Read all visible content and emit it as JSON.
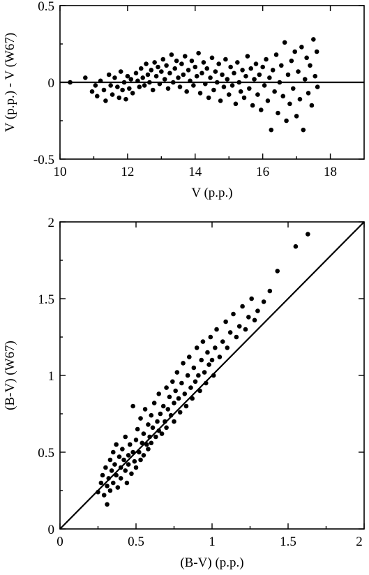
{
  "chart_data": [
    {
      "type": "scatter",
      "title": "",
      "xlabel": "V (p.p.)",
      "ylabel": "V (p.p.) - V (W67)",
      "xlim": [
        10,
        19
      ],
      "ylim": [
        -0.5,
        0.5
      ],
      "xticks": [
        "10",
        "12",
        "14",
        "16",
        "18"
      ],
      "yticks": [
        "-0.5",
        "0",
        "0.5"
      ],
      "reference_line": {
        "type": "horizontal",
        "y": 0
      },
      "grid": false,
      "legend": "none",
      "point_color": "#000000",
      "points_note": "estimated from plot",
      "points": [
        [
          10.3,
          0.0
        ],
        [
          10.75,
          0.03
        ],
        [
          10.95,
          -0.06
        ],
        [
          11.05,
          -0.02
        ],
        [
          11.1,
          -0.09
        ],
        [
          11.2,
          0.01
        ],
        [
          11.3,
          -0.05
        ],
        [
          11.35,
          -0.12
        ],
        [
          11.45,
          0.05
        ],
        [
          11.5,
          -0.02
        ],
        [
          11.55,
          -0.08
        ],
        [
          11.62,
          0.03
        ],
        [
          11.7,
          -0.03
        ],
        [
          11.75,
          -0.1
        ],
        [
          11.8,
          0.07
        ],
        [
          11.85,
          -0.05
        ],
        [
          11.9,
          0.0
        ],
        [
          11.95,
          -0.11
        ],
        [
          12.0,
          0.04
        ],
        [
          12.05,
          -0.04
        ],
        [
          12.1,
          0.02
        ],
        [
          12.15,
          -0.07
        ],
        [
          12.25,
          0.06
        ],
        [
          12.3,
          0.01
        ],
        [
          12.35,
          -0.03
        ],
        [
          12.4,
          0.09
        ],
        [
          12.45,
          0.03
        ],
        [
          12.5,
          -0.02
        ],
        [
          12.55,
          0.12
        ],
        [
          12.6,
          0.05
        ],
        [
          12.65,
          0.0
        ],
        [
          12.7,
          0.08
        ],
        [
          12.75,
          -0.05
        ],
        [
          12.8,
          0.13
        ],
        [
          12.85,
          0.04
        ],
        [
          12.9,
          0.1
        ],
        [
          12.95,
          -0.01
        ],
        [
          13.0,
          0.07
        ],
        [
          13.05,
          0.15
        ],
        [
          13.1,
          0.02
        ],
        [
          13.15,
          0.11
        ],
        [
          13.2,
          -0.04
        ],
        [
          13.25,
          0.06
        ],
        [
          13.3,
          0.18
        ],
        [
          13.35,
          0.0
        ],
        [
          13.4,
          0.09
        ],
        [
          13.45,
          0.14
        ],
        [
          13.5,
          0.03
        ],
        [
          13.55,
          -0.03
        ],
        [
          13.6,
          0.12
        ],
        [
          13.65,
          0.05
        ],
        [
          13.7,
          0.17
        ],
        [
          13.75,
          -0.06
        ],
        [
          13.8,
          0.08
        ],
        [
          13.85,
          0.01
        ],
        [
          13.9,
          0.14
        ],
        [
          13.95,
          -0.02
        ],
        [
          14.0,
          0.1
        ],
        [
          14.05,
          0.04
        ],
        [
          14.1,
          0.19
        ],
        [
          14.15,
          -0.07
        ],
        [
          14.2,
          0.06
        ],
        [
          14.25,
          0.13
        ],
        [
          14.3,
          -0.01
        ],
        [
          14.35,
          0.09
        ],
        [
          14.4,
          -0.1
        ],
        [
          14.45,
          0.03
        ],
        [
          14.5,
          0.16
        ],
        [
          14.55,
          -0.05
        ],
        [
          14.6,
          0.07
        ],
        [
          14.65,
          0.0
        ],
        [
          14.7,
          0.12
        ],
        [
          14.75,
          -0.12
        ],
        [
          14.8,
          0.05
        ],
        [
          14.85,
          -0.03
        ],
        [
          14.9,
          0.15
        ],
        [
          14.95,
          0.02
        ],
        [
          15.0,
          -0.08
        ],
        [
          15.05,
          0.1
        ],
        [
          15.1,
          -0.02
        ],
        [
          15.15,
          0.06
        ],
        [
          15.2,
          -0.14
        ],
        [
          15.25,
          0.13
        ],
        [
          15.3,
          0.0
        ],
        [
          15.35,
          -0.06
        ],
        [
          15.4,
          0.08
        ],
        [
          15.45,
          -0.1
        ],
        [
          15.5,
          0.04
        ],
        [
          15.55,
          0.17
        ],
        [
          15.6,
          -0.04
        ],
        [
          15.65,
          0.09
        ],
        [
          15.7,
          -0.15
        ],
        [
          15.75,
          0.02
        ],
        [
          15.8,
          0.12
        ],
        [
          15.85,
          -0.08
        ],
        [
          15.9,
          0.05
        ],
        [
          15.95,
          -0.18
        ],
        [
          16.0,
          0.1
        ],
        [
          16.05,
          -0.02
        ],
        [
          16.1,
          0.15
        ],
        [
          16.15,
          -0.12
        ],
        [
          16.2,
          0.03
        ],
        [
          16.25,
          -0.31
        ],
        [
          16.3,
          0.08
        ],
        [
          16.35,
          -0.06
        ],
        [
          16.4,
          0.18
        ],
        [
          16.45,
          -0.2
        ],
        [
          16.5,
          0.0
        ],
        [
          16.55,
          0.11
        ],
        [
          16.6,
          -0.09
        ],
        [
          16.65,
          0.26
        ],
        [
          16.7,
          -0.25
        ],
        [
          16.75,
          0.05
        ],
        [
          16.8,
          -0.14
        ],
        [
          16.85,
          0.14
        ],
        [
          16.9,
          -0.04
        ],
        [
          16.95,
          0.2
        ],
        [
          17.0,
          -0.22
        ],
        [
          17.05,
          0.07
        ],
        [
          17.1,
          -0.11
        ],
        [
          17.15,
          0.23
        ],
        [
          17.2,
          -0.31
        ],
        [
          17.25,
          0.02
        ],
        [
          17.3,
          0.16
        ],
        [
          17.35,
          -0.07
        ],
        [
          17.4,
          0.11
        ],
        [
          17.45,
          -0.15
        ],
        [
          17.5,
          0.28
        ],
        [
          17.55,
          0.04
        ],
        [
          17.6,
          0.2
        ],
        [
          17.62,
          -0.03
        ]
      ]
    },
    {
      "type": "scatter",
      "title": "",
      "xlabel": "(B-V) (p.p.)",
      "ylabel": "(B-V) (W67)",
      "xlim": [
        0,
        2
      ],
      "ylim": [
        0,
        2
      ],
      "xticks": [
        "0",
        "0.5",
        "1",
        "1.5",
        "2"
      ],
      "yticks": [
        "0",
        "0.5",
        "1",
        "1.5",
        "2"
      ],
      "reference_line": {
        "type": "diagonal",
        "from": [
          0,
          0
        ],
        "to": [
          2,
          2
        ]
      },
      "grid": false,
      "legend": "none",
      "point_color": "#000000",
      "points_note": "estimated from plot",
      "points": [
        [
          0.25,
          0.24
        ],
        [
          0.27,
          0.3
        ],
        [
          0.28,
          0.35
        ],
        [
          0.29,
          0.22
        ],
        [
          0.3,
          0.4
        ],
        [
          0.31,
          0.28
        ],
        [
          0.31,
          0.16
        ],
        [
          0.32,
          0.33
        ],
        [
          0.33,
          0.45
        ],
        [
          0.33,
          0.25
        ],
        [
          0.34,
          0.38
        ],
        [
          0.35,
          0.3
        ],
        [
          0.35,
          0.5
        ],
        [
          0.36,
          0.42
        ],
        [
          0.37,
          0.35
        ],
        [
          0.37,
          0.55
        ],
        [
          0.38,
          0.27
        ],
        [
          0.39,
          0.47
        ],
        [
          0.4,
          0.4
        ],
        [
          0.4,
          0.33
        ],
        [
          0.41,
          0.52
        ],
        [
          0.42,
          0.45
        ],
        [
          0.43,
          0.38
        ],
        [
          0.43,
          0.6
        ],
        [
          0.44,
          0.3
        ],
        [
          0.45,
          0.48
        ],
        [
          0.45,
          0.42
        ],
        [
          0.46,
          0.55
        ],
        [
          0.47,
          0.36
        ],
        [
          0.48,
          0.5
        ],
        [
          0.48,
          0.8
        ],
        [
          0.49,
          0.44
        ],
        [
          0.5,
          0.58
        ],
        [
          0.5,
          0.4
        ],
        [
          0.51,
          0.65
        ],
        [
          0.52,
          0.5
        ],
        [
          0.53,
          0.45
        ],
        [
          0.53,
          0.72
        ],
        [
          0.54,
          0.56
        ],
        [
          0.55,
          0.62
        ],
        [
          0.55,
          0.48
        ],
        [
          0.56,
          0.78
        ],
        [
          0.57,
          0.55
        ],
        [
          0.58,
          0.68
        ],
        [
          0.58,
          0.52
        ],
        [
          0.59,
          0.6
        ],
        [
          0.6,
          0.74
        ],
        [
          0.6,
          0.56
        ],
        [
          0.61,
          0.66
        ],
        [
          0.62,
          0.82
        ],
        [
          0.63,
          0.6
        ],
        [
          0.64,
          0.7
        ],
        [
          0.65,
          0.64
        ],
        [
          0.65,
          0.88
        ],
        [
          0.66,
          0.75
        ],
        [
          0.67,
          0.62
        ],
        [
          0.68,
          0.8
        ],
        [
          0.69,
          0.7
        ],
        [
          0.7,
          0.92
        ],
        [
          0.7,
          0.66
        ],
        [
          0.71,
          0.78
        ],
        [
          0.72,
          0.86
        ],
        [
          0.73,
          0.74
        ],
        [
          0.74,
          0.96
        ],
        [
          0.75,
          0.82
        ],
        [
          0.75,
          0.7
        ],
        [
          0.76,
          0.9
        ],
        [
          0.77,
          1.02
        ],
        [
          0.78,
          0.85
        ],
        [
          0.79,
          0.76
        ],
        [
          0.8,
          0.95
        ],
        [
          0.81,
          1.08
        ],
        [
          0.82,
          0.88
        ],
        [
          0.83,
          0.8
        ],
        [
          0.84,
          1.0
        ],
        [
          0.85,
          1.12
        ],
        [
          0.86,
          0.92
        ],
        [
          0.87,
          0.85
        ],
        [
          0.88,
          1.05
        ],
        [
          0.89,
          0.96
        ],
        [
          0.9,
          1.18
        ],
        [
          0.91,
          1.0
        ],
        [
          0.92,
          0.9
        ],
        [
          0.93,
          1.1
        ],
        [
          0.94,
          1.22
        ],
        [
          0.95,
          1.02
        ],
        [
          0.96,
          0.95
        ],
        [
          0.97,
          1.15
        ],
        [
          0.98,
          1.07
        ],
        [
          0.99,
          1.25
        ],
        [
          1.0,
          1.1
        ],
        [
          1.01,
          1.0
        ],
        [
          1.02,
          1.18
        ],
        [
          1.03,
          1.3
        ],
        [
          1.05,
          1.12
        ],
        [
          1.07,
          1.22
        ],
        [
          1.09,
          1.35
        ],
        [
          1.1,
          1.18
        ],
        [
          1.12,
          1.28
        ],
        [
          1.14,
          1.4
        ],
        [
          1.16,
          1.25
        ],
        [
          1.18,
          1.32
        ],
        [
          1.2,
          1.45
        ],
        [
          1.22,
          1.3
        ],
        [
          1.24,
          1.38
        ],
        [
          1.26,
          1.5
        ],
        [
          1.28,
          1.36
        ],
        [
          1.3,
          1.42
        ],
        [
          1.34,
          1.48
        ],
        [
          1.38,
          1.55
        ],
        [
          1.43,
          1.68
        ],
        [
          1.55,
          1.84
        ],
        [
          1.63,
          1.92
        ]
      ]
    }
  ]
}
